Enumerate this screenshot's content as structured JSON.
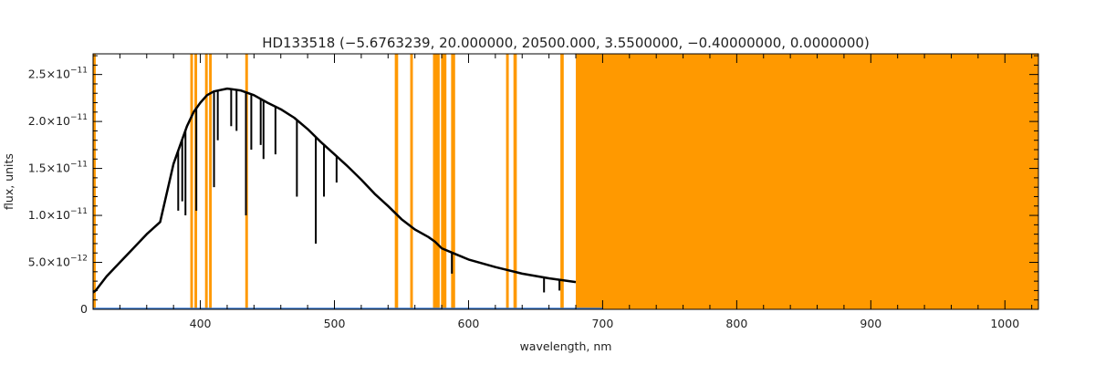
{
  "chart_data": {
    "type": "line",
    "title": "HD133518   (−5.6763239, 20.000000, 20500.000, 3.5500000, −0.40000000, 0.0000000)",
    "xlabel": "wavelength, nm",
    "ylabel": "flux, units",
    "xlim": [
      320,
      1025
    ],
    "ylim": [
      0,
      2.72e-11
    ],
    "x_ticks": [
      {
        "value": 400,
        "label": "400"
      },
      {
        "value": 500,
        "label": "500"
      },
      {
        "value": 600,
        "label": "600"
      },
      {
        "value": 700,
        "label": "700"
      },
      {
        "value": 800,
        "label": "800"
      },
      {
        "value": 900,
        "label": "900"
      },
      {
        "value": 1000,
        "label": "1000"
      }
    ],
    "y_ticks": [
      {
        "value": 0,
        "mantissa": "0",
        "exponent": ""
      },
      {
        "value": 5e-12,
        "mantissa": "5.0×10",
        "exponent": "−12"
      },
      {
        "value": 1e-11,
        "mantissa": "1.0×10",
        "exponent": "−11"
      },
      {
        "value": 1.5e-11,
        "mantissa": "1.5×10",
        "exponent": "−11"
      },
      {
        "value": 2e-11,
        "mantissa": "2.0×10",
        "exponent": "−11"
      },
      {
        "value": 2.5e-11,
        "mantissa": "2.5×10",
        "exponent": "−11"
      }
    ],
    "grid": false,
    "colors": {
      "spectrum": "#000000",
      "masks": "#ff9900",
      "baseline": "#3a7bd5",
      "axes": "#000000"
    },
    "masked_regions": [
      [
        320,
        322
      ],
      [
        392.5,
        394.5
      ],
      [
        395.6,
        397.6
      ],
      [
        403.5,
        405.5
      ],
      [
        406.5,
        408.5
      ],
      [
        433.5,
        435.5
      ],
      [
        545,
        547.5
      ],
      [
        556.5,
        558.5
      ],
      [
        573.5,
        578.5
      ],
      [
        579.5,
        583.5
      ],
      [
        587,
        590
      ],
      [
        628,
        630
      ],
      [
        633.5,
        636
      ],
      [
        668.5,
        671
      ],
      [
        680,
        1025
      ]
    ],
    "series": [
      {
        "style": "spectrum",
        "x": [
          320,
          322,
          330,
          340,
          350,
          360,
          370,
          380,
          385,
          390,
          395,
          400,
          405,
          410,
          420,
          430,
          440,
          450,
          460,
          470,
          480,
          490,
          500,
          510,
          520,
          530,
          540,
          550,
          560,
          570,
          575,
          580,
          590,
          600,
          620,
          640,
          660,
          680
        ],
        "y": [
          1.8e-12,
          2e-12,
          3.5e-12,
          5e-12,
          6.5e-12,
          8e-12,
          9.3e-12,
          1.55e-11,
          1.75e-11,
          1.95e-11,
          2.1e-11,
          2.2e-11,
          2.28e-11,
          2.32e-11,
          2.35e-11,
          2.33e-11,
          2.28e-11,
          2.2e-11,
          2.13e-11,
          2.04e-11,
          1.92e-11,
          1.78e-11,
          1.65e-11,
          1.52e-11,
          1.38e-11,
          1.23e-11,
          1.1e-11,
          9.6e-12,
          8.5e-12,
          7.7e-12,
          7.2e-12,
          6.5e-12,
          5.9e-12,
          5.3e-12,
          4.5e-12,
          3.8e-12,
          3.3e-12,
          2.9e-12
        ]
      }
    ],
    "absorption_lines": [
      {
        "x": 383.5,
        "y": 1.05e-11
      },
      {
        "x": 386.5,
        "y": 1.15e-11
      },
      {
        "x": 388.9,
        "y": 1e-11
      },
      {
        "x": 397.0,
        "y": 1.05e-11
      },
      {
        "x": 410.2,
        "y": 1.3e-11
      },
      {
        "x": 413.0,
        "y": 1.8e-11
      },
      {
        "x": 423.0,
        "y": 1.95e-11
      },
      {
        "x": 427.0,
        "y": 1.9e-11
      },
      {
        "x": 434.0,
        "y": 1e-11
      },
      {
        "x": 438.0,
        "y": 1.7e-11
      },
      {
        "x": 445.0,
        "y": 1.75e-11
      },
      {
        "x": 447.1,
        "y": 1.6e-11
      },
      {
        "x": 456.0,
        "y": 1.65e-11
      },
      {
        "x": 472.0,
        "y": 1.2e-11
      },
      {
        "x": 486.1,
        "y": 7e-12
      },
      {
        "x": 492.2,
        "y": 1.2e-11
      },
      {
        "x": 501.6,
        "y": 1.35e-11
      },
      {
        "x": 587.6,
        "y": 3.8e-12
      },
      {
        "x": 656.3,
        "y": 1.8e-12
      },
      {
        "x": 667.8,
        "y": 2e-12
      }
    ]
  }
}
